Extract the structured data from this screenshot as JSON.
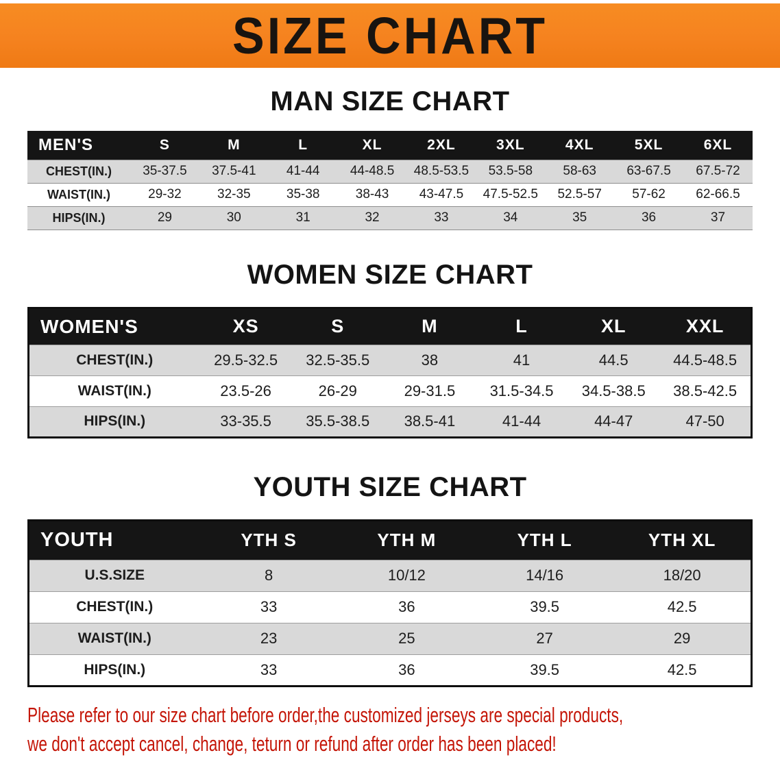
{
  "banner": {
    "title": "SIZE CHART",
    "bg_color": "#f5821f",
    "text_color": "#181410"
  },
  "sections": [
    {
      "id": "men",
      "heading": "MAN SIZE CHART",
      "table": {
        "header": [
          "MEN'S",
          "S",
          "M",
          "L",
          "XL",
          "2XL",
          "3XL",
          "4XL",
          "5XL",
          "6XL"
        ],
        "rows": [
          [
            "CHEST(IN.)",
            "35-37.5",
            "37.5-41",
            "41-44",
            "44-48.5",
            "48.5-53.5",
            "53.5-58",
            "58-63",
            "63-67.5",
            "67.5-72"
          ],
          [
            "WAIST(IN.)",
            "29-32",
            "32-35",
            "35-38",
            "38-43",
            "43-47.5",
            "47.5-52.5",
            "52.5-57",
            "57-62",
            "62-66.5"
          ],
          [
            "HIPS(IN.)",
            "29",
            "30",
            "31",
            "32",
            "33",
            "34",
            "35",
            "36",
            "37"
          ]
        ]
      }
    },
    {
      "id": "women",
      "heading": "WOMEN SIZE CHART",
      "table": {
        "header": [
          "WOMEN'S",
          "XS",
          "S",
          "M",
          "L",
          "XL",
          "XXL"
        ],
        "rows": [
          [
            "CHEST(IN.)",
            "29.5-32.5",
            "32.5-35.5",
            "38",
            "41",
            "44.5",
            "44.5-48.5"
          ],
          [
            "WAIST(IN.)",
            "23.5-26",
            "26-29",
            "29-31.5",
            "31.5-34.5",
            "34.5-38.5",
            "38.5-42.5"
          ],
          [
            "HIPS(IN.)",
            "33-35.5",
            "35.5-38.5",
            "38.5-41",
            "41-44",
            "44-47",
            "47-50"
          ]
        ]
      }
    },
    {
      "id": "youth",
      "heading": "YOUTH SIZE CHART",
      "table": {
        "header": [
          "YOUTH",
          "YTH S",
          "YTH M",
          "YTH L",
          "YTH XL"
        ],
        "rows": [
          [
            "U.S.SIZE",
            "8",
            "10/12",
            "14/16",
            "18/20"
          ],
          [
            "CHEST(IN.)",
            "33",
            "36",
            "39.5",
            "42.5"
          ],
          [
            "WAIST(IN.)",
            "23",
            "25",
            "27",
            "29"
          ],
          [
            "HIPS(IN.)",
            "33",
            "36",
            "39.5",
            "42.5"
          ]
        ]
      }
    }
  ],
  "notice": {
    "lines": [
      "Please refer to our size chart before order,the customized jerseys are special products,",
      "we don't accept cancel, change, teturn or refund after order has been placed!"
    ],
    "text_color": "#c41507"
  },
  "table_colors": {
    "header_bg": "#151515",
    "header_text": "#ffffff",
    "shaded_row": "#d9d9d9",
    "unshaded_row": "#ffffff"
  }
}
